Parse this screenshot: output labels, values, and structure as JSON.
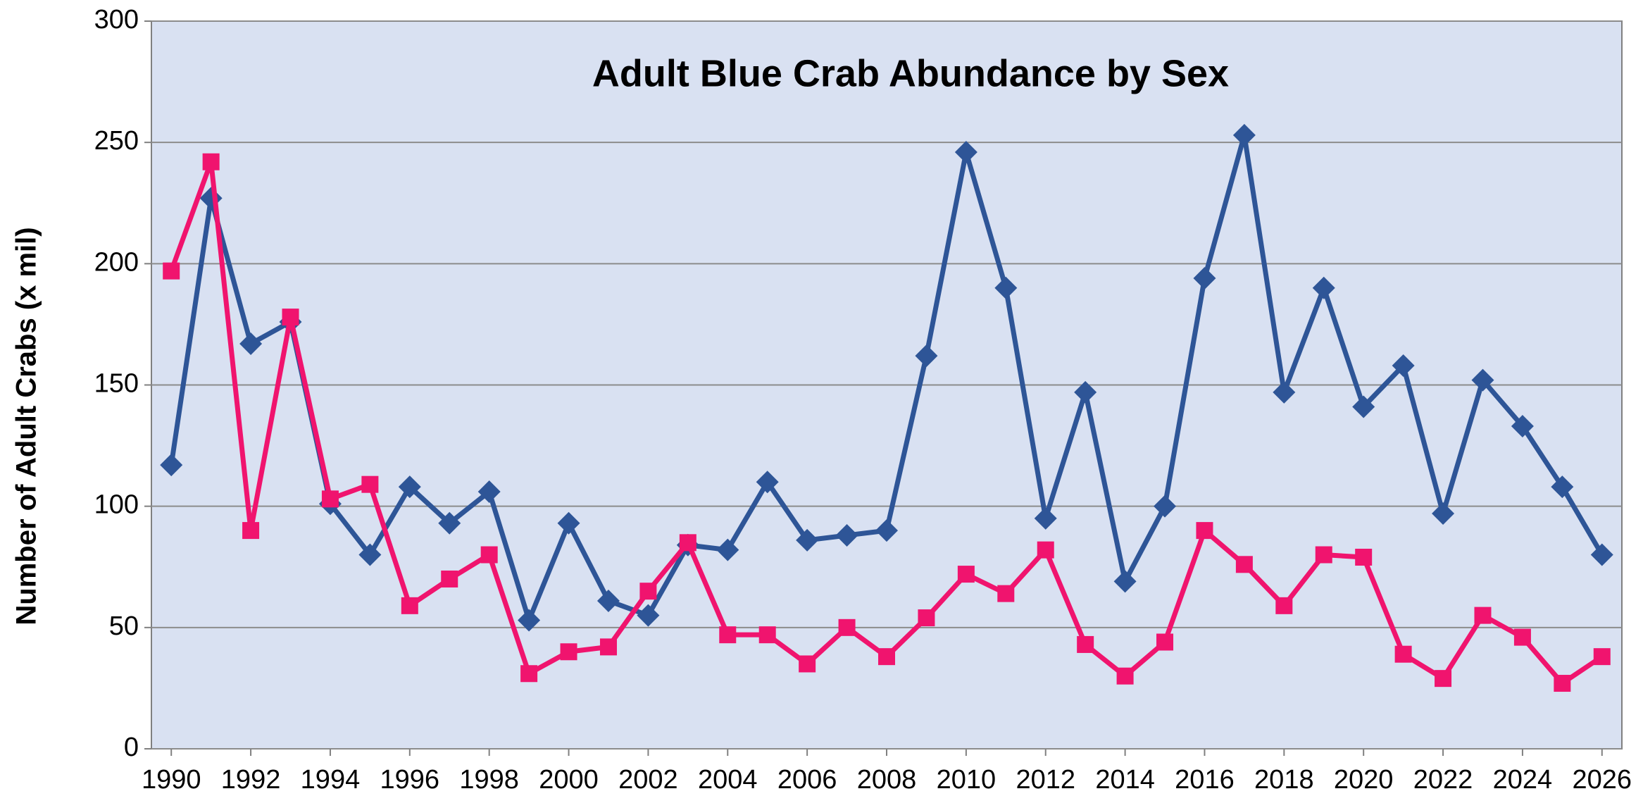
{
  "chart_data": {
    "type": "line",
    "title": "Adult Blue Crab Abundance by Sex",
    "y_label": "Number of Adult Crabs (x mil)",
    "x": [
      1990,
      1991,
      1992,
      1993,
      1994,
      1995,
      1996,
      1997,
      1998,
      1999,
      2000,
      2001,
      2002,
      2003,
      2004,
      2005,
      2006,
      2007,
      2008,
      2009,
      2010,
      2011,
      2012,
      2013,
      2014,
      2015,
      2016,
      2017,
      2018,
      2019,
      2020,
      2021,
      2022,
      2023,
      2024,
      2025,
      2026
    ],
    "series": [
      {
        "color": "#2e5597",
        "marker": "diamond",
        "values": [
          117,
          227,
          167,
          176,
          101,
          80,
          108,
          93,
          106,
          53,
          93,
          61,
          55,
          84,
          82,
          110,
          86,
          88,
          90,
          162,
          246,
          190,
          95,
          147,
          69,
          100,
          194,
          253,
          147,
          190,
          141,
          158,
          97,
          152,
          133,
          108,
          80
        ]
      },
      {
        "color": "#f0146e",
        "marker": "square",
        "values": [
          197,
          242,
          90,
          178,
          103,
          109,
          59,
          70,
          80,
          31,
          40,
          42,
          65,
          85,
          47,
          47,
          35,
          50,
          38,
          54,
          72,
          64,
          82,
          43,
          30,
          44,
          90,
          76,
          59,
          80,
          79,
          39,
          29,
          55,
          46,
          27,
          38
        ]
      }
    ],
    "xlim": [
      1989.5,
      2026.5
    ],
    "xticks": [
      1990,
      1992,
      1994,
      1996,
      1998,
      2000,
      2002,
      2004,
      2006,
      2008,
      2010,
      2012,
      2014,
      2016,
      2018,
      2020,
      2022,
      2024,
      2026
    ],
    "ylim": [
      0,
      300
    ],
    "yticks": [
      0,
      50,
      100,
      150,
      200,
      250,
      300
    ],
    "grid": true,
    "plot_background": "#d9e1f2"
  }
}
